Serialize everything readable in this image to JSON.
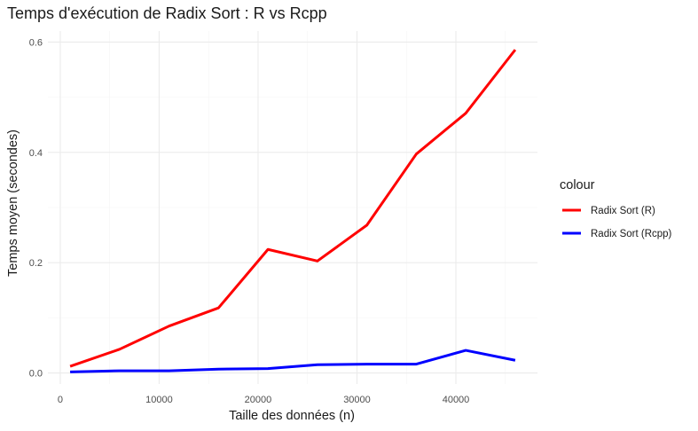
{
  "chart_data": {
    "type": "line",
    "title": "Temps d'exécution de Radix Sort : R vs Rcpp",
    "xlabel": "Taille des données (n)",
    "ylabel": "Temps moyen (secondes)",
    "xlim": [
      -1250,
      48250
    ],
    "ylim": [
      -0.02,
      0.62
    ],
    "x_ticks": [
      0,
      10000,
      20000,
      30000,
      40000
    ],
    "y_ticks": [
      0.0,
      0.2,
      0.4,
      0.6
    ],
    "x_tick_labels": [
      "0",
      "10000",
      "20000",
      "30000",
      "40000"
    ],
    "y_tick_labels": [
      "0.0",
      "0.2",
      "0.4",
      "0.6"
    ],
    "grid": true,
    "legend_position": "right",
    "legend_title": "colour",
    "x": [
      1000,
      6000,
      11000,
      16000,
      21000,
      26000,
      31000,
      36000,
      41000,
      46000
    ],
    "series": [
      {
        "name": "Radix Sort (R)",
        "color": "#ff0000",
        "values": [
          0.012,
          0.043,
          0.085,
          0.118,
          0.224,
          0.203,
          0.268,
          0.397,
          0.471,
          0.586
        ]
      },
      {
        "name": "Radix Sort (Rcpp)",
        "color": "#0000ff",
        "values": [
          0.002,
          0.004,
          0.004,
          0.007,
          0.008,
          0.015,
          0.016,
          0.016,
          0.041,
          0.023
        ]
      }
    ]
  }
}
